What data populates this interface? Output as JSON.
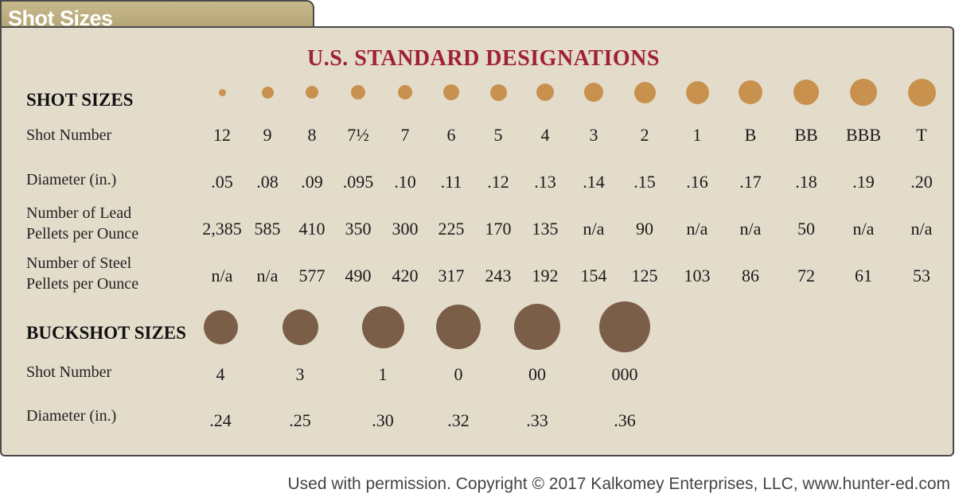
{
  "tab_title": "Shot Sizes",
  "title": "U.S. STANDARD DESIGNATIONS",
  "shot": {
    "heading": "SHOT SIZES",
    "labels": {
      "number": "Shot Number",
      "diameter": "Diameter (in.)",
      "lead_1": "Number of Lead",
      "lead_2": "Pellets per Ounce",
      "steel_1": "Number of Steel",
      "steel_2": "Pellets per Ounce"
    },
    "color": "#c8914e",
    "sizes": [
      {
        "number": "12",
        "diameter": ".05",
        "lead": "2,385",
        "steel": "n/a"
      },
      {
        "number": "9",
        "diameter": ".08",
        "lead": "585",
        "steel": "n/a"
      },
      {
        "number": "8",
        "diameter": ".09",
        "lead": "410",
        "steel": "577"
      },
      {
        "number": "7½",
        "diameter": ".095",
        "lead": "350",
        "steel": "490"
      },
      {
        "number": "7",
        "diameter": ".10",
        "lead": "300",
        "steel": "420"
      },
      {
        "number": "6",
        "diameter": ".11",
        "lead": "225",
        "steel": "317"
      },
      {
        "number": "5",
        "diameter": ".12",
        "lead": "170",
        "steel": "243"
      },
      {
        "number": "4",
        "diameter": ".13",
        "lead": "135",
        "steel": "192"
      },
      {
        "number": "3",
        "diameter": ".14",
        "lead": "n/a",
        "steel": "154"
      },
      {
        "number": "2",
        "diameter": ".15",
        "lead": "90",
        "steel": "125"
      },
      {
        "number": "1",
        "diameter": ".16",
        "lead": "n/a",
        "steel": "103"
      },
      {
        "number": "B",
        "diameter": ".17",
        "lead": "n/a",
        "steel": "86"
      },
      {
        "number": "BB",
        "diameter": ".18",
        "lead": "50",
        "steel": "72"
      },
      {
        "number": "BBB",
        "diameter": ".19",
        "lead": "n/a",
        "steel": "61"
      },
      {
        "number": "T",
        "diameter": ".20",
        "lead": "n/a",
        "steel": "53"
      }
    ]
  },
  "buckshot": {
    "heading": "BUCKSHOT SIZES",
    "labels": {
      "number": "Shot Number",
      "diameter": "Diameter (in.)"
    },
    "color": "#7b5e48",
    "sizes": [
      {
        "number": "4",
        "diameter": ".24"
      },
      {
        "number": "3",
        "diameter": ".25"
      },
      {
        "number": "1",
        "diameter": ".30"
      },
      {
        "number": "0",
        "diameter": ".32"
      },
      {
        "number": "00",
        "diameter": ".33"
      },
      {
        "number": "000",
        "diameter": ".36"
      }
    ]
  },
  "footer": "Used with permission. Copyright © 2017 Kalkomey Enterprises, LLC, www.hunter-ed.com"
}
